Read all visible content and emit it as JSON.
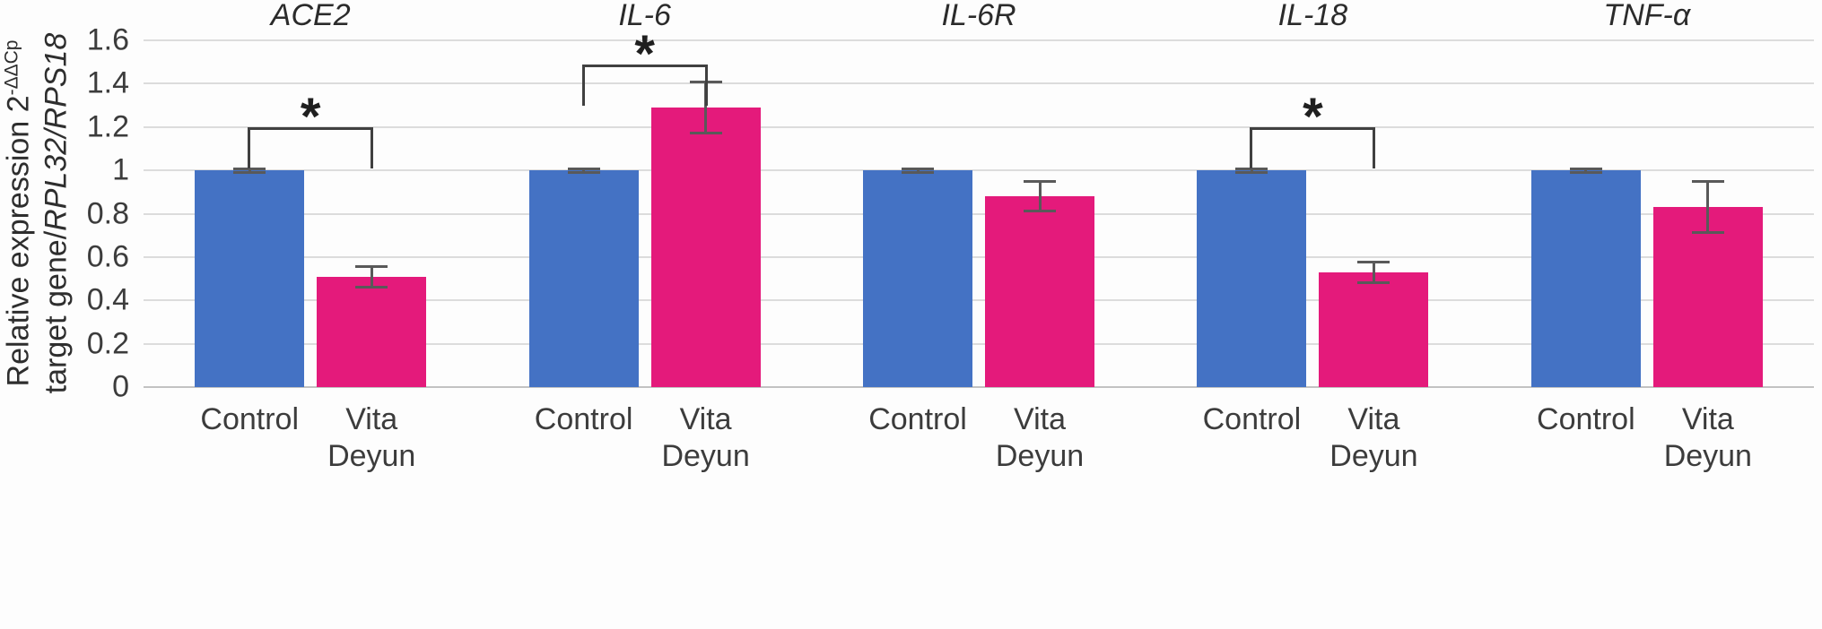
{
  "figure": {
    "ylabel_line1": "Relative expression 2",
    "ylabel_sup": "-ΔΔCp",
    "ylabel_line2_plain": "target gene/",
    "ylabel_line2_italic": "RPL32/RPS18"
  },
  "chart_data": {
    "type": "bar",
    "title": "",
    "ylabel": "Relative expression 2^-ΔΔCp target gene/RPL32/RPS18",
    "ylim": [
      0,
      1.6
    ],
    "ytick_values": [
      0,
      0.2,
      0.4,
      0.6,
      0.8,
      1,
      1.2,
      1.4,
      1.6
    ],
    "ytick_labels": [
      "0",
      "0.2",
      "0.4",
      "0.6",
      "0.8",
      "1",
      "1.2",
      "1.4",
      "1.6"
    ],
    "grid": true,
    "legend_position": "none",
    "categories": [
      "ACE2",
      "IL-6",
      "IL-6R",
      "IL-18",
      "TNF-α"
    ],
    "series": [
      {
        "name": "Control",
        "color": "#4472C4",
        "values": [
          1,
          1,
          1,
          1,
          1
        ],
        "errors": [
          0.01,
          0.01,
          0.01,
          0.01,
          0.01
        ]
      },
      {
        "name": "Vita Deyun",
        "color": "#E41A7B",
        "values": [
          0.51,
          1.29,
          0.88,
          0.53,
          0.83
        ],
        "errors": [
          0.05,
          0.12,
          0.07,
          0.05,
          0.12
        ]
      }
    ],
    "x_labels": {
      "control": "Control",
      "treatment_lines": [
        "Vita",
        "Deyun"
      ]
    },
    "significance": [
      {
        "category": "ACE2",
        "marker": "*",
        "bracket_y": 1.2
      },
      {
        "category": "IL-6",
        "marker": "*",
        "bracket_y": 1.49
      },
      {
        "category": "IL-18",
        "marker": "*",
        "bracket_y": 1.2
      }
    ],
    "bracket_drop": 0.19,
    "colors": {
      "control_bar": "#4472C4",
      "treatment_bar": "#E41A7B",
      "error_bar": "#595959",
      "gridline": "#dcdcdc",
      "bracket": "#404040"
    }
  }
}
